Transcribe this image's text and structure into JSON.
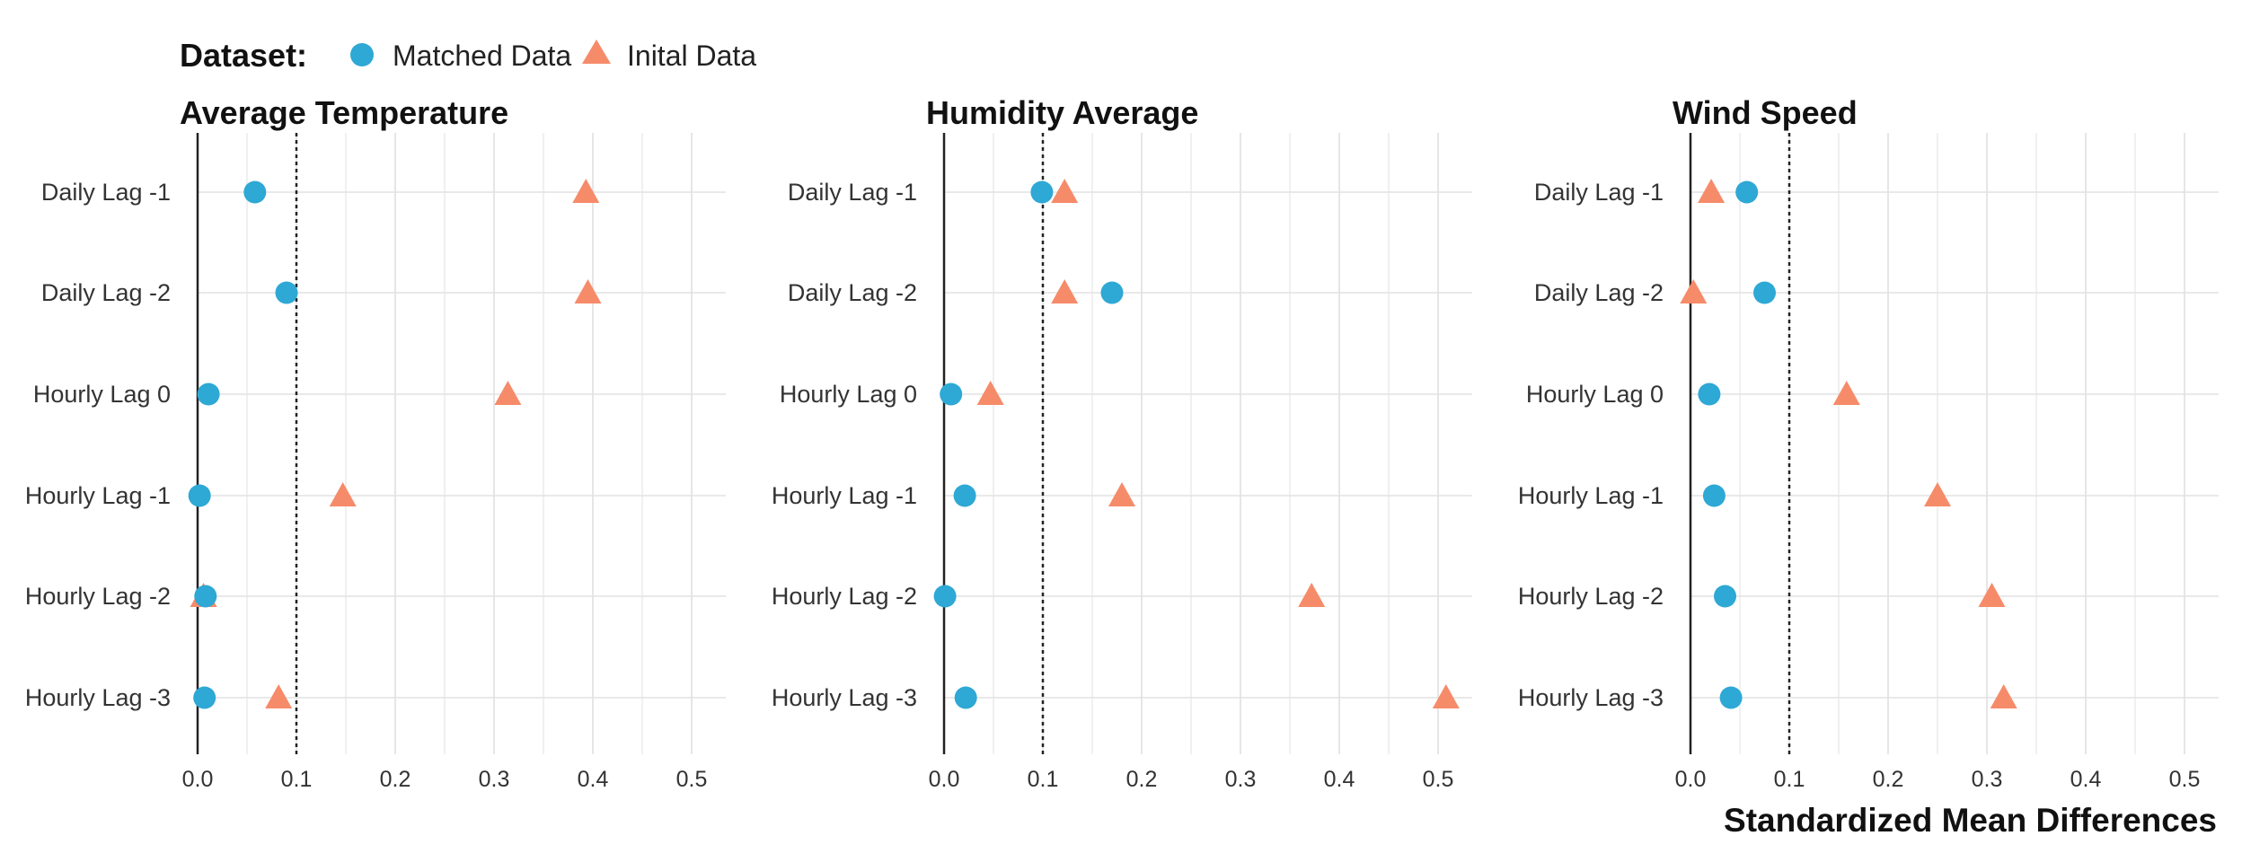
{
  "legend": {
    "title": "Dataset:",
    "items": [
      {
        "label": "Matched Data",
        "shape": "circle",
        "color": "#2EA8D5"
      },
      {
        "label": "Inital Data",
        "shape": "triangle",
        "color": "#F68B6A"
      }
    ]
  },
  "xlabel": "Standardized Mean Differences",
  "chart_data": [
    {
      "type": "scatter",
      "title": "Average Temperature",
      "categories": [
        "Daily Lag -1",
        "Daily Lag -2",
        "Hourly Lag 0",
        "Hourly Lag -1",
        "Hourly Lag -2",
        "Hourly Lag -3"
      ],
      "xlim": [
        0,
        0.52
      ],
      "xticks": [
        "0.0",
        "0.1",
        "0.2",
        "0.3",
        "0.4",
        "0.5"
      ],
      "reference_line": 0.1,
      "series": [
        {
          "name": "Matched Data",
          "values": [
            0.058,
            0.09,
            0.011,
            0.002,
            0.008,
            0.007
          ]
        },
        {
          "name": "Inital Data",
          "values": [
            0.393,
            0.395,
            0.314,
            0.147,
            0.006,
            0.082
          ]
        }
      ]
    },
    {
      "type": "scatter",
      "title": "Humidity Average",
      "categories": [
        "Daily Lag -1",
        "Daily Lag -2",
        "Hourly Lag 0",
        "Hourly Lag -1",
        "Hourly Lag -2",
        "Hourly Lag -3"
      ],
      "xlim": [
        0,
        0.52
      ],
      "xticks": [
        "0.0",
        "0.1",
        "0.2",
        "0.3",
        "0.4",
        "0.5"
      ],
      "reference_line": 0.1,
      "series": [
        {
          "name": "Matched Data",
          "values": [
            0.099,
            0.17,
            0.007,
            0.021,
            0.001,
            0.022
          ]
        },
        {
          "name": "Inital Data",
          "values": [
            0.122,
            0.122,
            0.047,
            0.18,
            0.372,
            0.508
          ]
        }
      ]
    },
    {
      "type": "scatter",
      "title": "Wind Speed",
      "categories": [
        "Daily Lag -1",
        "Daily Lag -2",
        "Hourly Lag 0",
        "Hourly Lag -1",
        "Hourly Lag -2",
        "Hourly Lag -3"
      ],
      "xlim": [
        0,
        0.52
      ],
      "xticks": [
        "0.0",
        "0.1",
        "0.2",
        "0.3",
        "0.4",
        "0.5"
      ],
      "reference_line": 0.1,
      "series": [
        {
          "name": "Matched Data",
          "values": [
            0.057,
            0.075,
            0.019,
            0.024,
            0.035,
            0.041
          ]
        },
        {
          "name": "Inital Data",
          "values": [
            0.021,
            0.003,
            0.158,
            0.25,
            0.305,
            0.317
          ]
        }
      ]
    }
  ]
}
